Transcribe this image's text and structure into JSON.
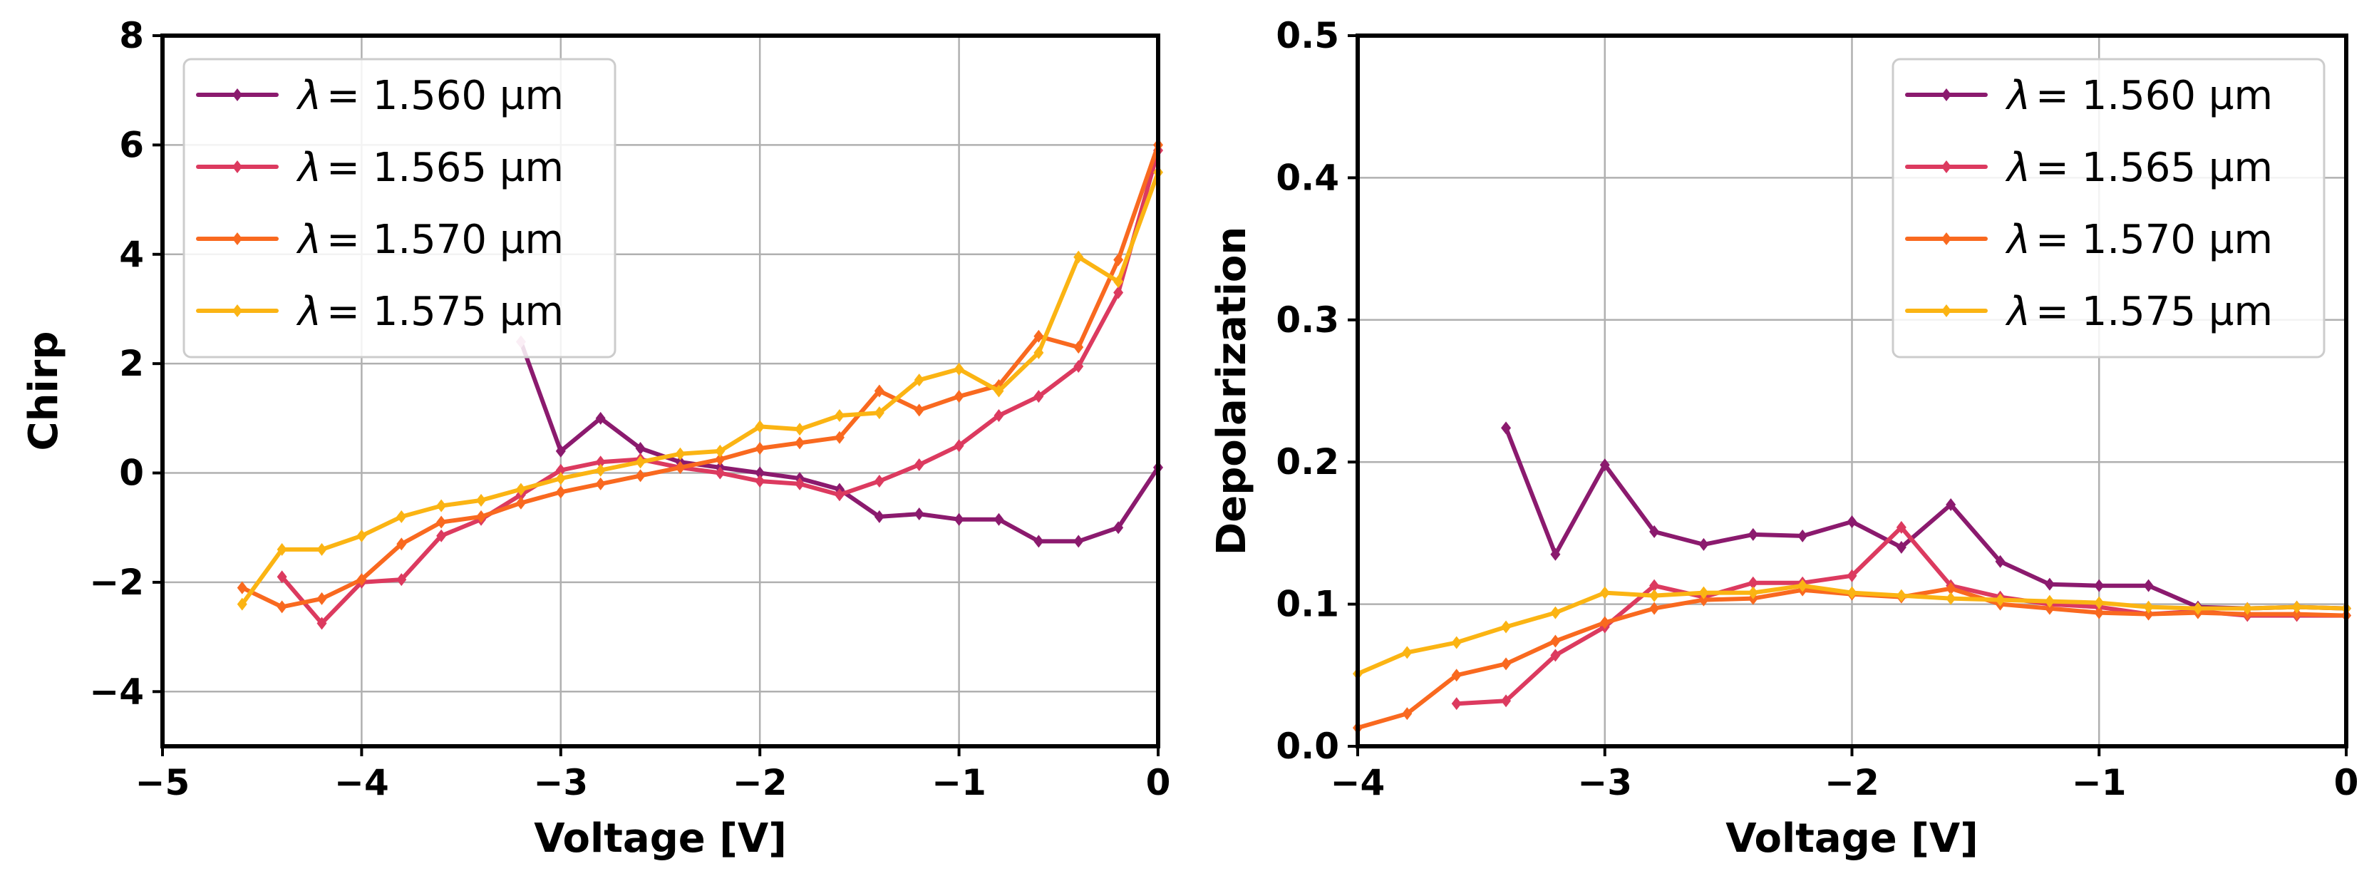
{
  "colors": {
    "series": [
      "#8b1a6e",
      "#dc3a5f",
      "#f9691f",
      "#fbb413"
    ],
    "grid": "#b0b0b0",
    "axis": "#000000",
    "legend_border": "#cccccc",
    "start_marker": "#d98fbd"
  },
  "chart_data": [
    {
      "type": "line",
      "xlabel": "Voltage [V]",
      "ylabel": "Chirp",
      "xlim": [
        -5,
        0
      ],
      "ylim": [
        -5,
        8
      ],
      "xticks": [
        -5,
        -4,
        -3,
        -2,
        -1,
        0
      ],
      "yticks": [
        -4,
        -2,
        0,
        2,
        4,
        6,
        8
      ],
      "xtick_labels": [
        "−5",
        "−4",
        "−3",
        "−2",
        "−1",
        "0"
      ],
      "ytick_labels": [
        "−4",
        "−2",
        "0",
        "2",
        "4",
        "6",
        "8"
      ],
      "grid": true,
      "legend_position": "upper-left",
      "series": [
        {
          "name": "λ = 1.560 µm",
          "legend_symbol": "λ",
          "legend_text": "= 1.560 µm",
          "x": [
            -3.2,
            -3.0,
            -2.8,
            -2.6,
            -2.4,
            -2.2,
            -2.0,
            -1.8,
            -1.6,
            -1.4,
            -1.2,
            -1.0,
            -0.8,
            -0.6,
            -0.4,
            -0.2,
            0.0
          ],
          "y": [
            2.4,
            0.4,
            1.0,
            0.45,
            0.2,
            0.1,
            0.0,
            -0.1,
            -0.3,
            -0.8,
            -0.75,
            -0.85,
            -0.85,
            -1.25,
            -1.25,
            -1.0,
            0.1
          ]
        },
        {
          "name": "λ = 1.565 µm",
          "legend_symbol": "λ",
          "legend_text": "= 1.565 µm",
          "x": [
            -4.4,
            -4.2,
            -4.0,
            -3.8,
            -3.6,
            -3.4,
            -3.2,
            -3.0,
            -2.8,
            -2.6,
            -2.4,
            -2.2,
            -2.0,
            -1.8,
            -1.6,
            -1.4,
            -1.2,
            -1.0,
            -0.8,
            -0.6,
            -0.4,
            -0.2,
            0.0
          ],
          "y": [
            -1.9,
            -2.75,
            -2.0,
            -1.95,
            -1.15,
            -0.85,
            -0.4,
            0.05,
            0.2,
            0.25,
            0.1,
            0.0,
            -0.15,
            -0.2,
            -0.4,
            -0.15,
            0.15,
            0.5,
            1.05,
            1.4,
            1.95,
            3.3,
            5.9
          ]
        },
        {
          "name": "λ = 1.570 µm",
          "legend_symbol": "λ",
          "legend_text": "= 1.570 µm",
          "x": [
            -4.6,
            -4.4,
            -4.2,
            -4.0,
            -3.8,
            -3.6,
            -3.4,
            -3.2,
            -3.0,
            -2.8,
            -2.6,
            -2.4,
            -2.2,
            -2.0,
            -1.8,
            -1.6,
            -1.4,
            -1.2,
            -1.0,
            -0.8,
            -0.6,
            -0.4,
            -0.2,
            0.0
          ],
          "y": [
            -2.1,
            -2.45,
            -2.3,
            -1.95,
            -1.3,
            -0.9,
            -0.8,
            -0.55,
            -0.35,
            -0.2,
            -0.05,
            0.1,
            0.25,
            0.45,
            0.55,
            0.65,
            1.5,
            1.15,
            1.4,
            1.6,
            2.5,
            2.3,
            3.9,
            6.0
          ]
        },
        {
          "name": "λ = 1.575 µm",
          "legend_symbol": "λ",
          "legend_text": "= 1.575 µm",
          "x": [
            -4.6,
            -4.4,
            -4.2,
            -4.0,
            -3.8,
            -3.6,
            -3.4,
            -3.2,
            -3.0,
            -2.8,
            -2.6,
            -2.4,
            -2.2,
            -2.0,
            -1.8,
            -1.6,
            -1.4,
            -1.2,
            -1.0,
            -0.8,
            -0.6,
            -0.4,
            -0.2,
            0.0
          ],
          "y": [
            -2.4,
            -1.4,
            -1.4,
            -1.15,
            -0.8,
            -0.6,
            -0.5,
            -0.3,
            -0.1,
            0.05,
            0.2,
            0.35,
            0.4,
            0.85,
            0.8,
            1.05,
            1.1,
            1.7,
            1.9,
            1.5,
            2.2,
            3.95,
            3.5,
            5.5
          ]
        }
      ]
    },
    {
      "type": "line",
      "xlabel": "Voltage [V]",
      "ylabel": "Depolarization",
      "xlim": [
        -4,
        0
      ],
      "ylim": [
        0,
        0.5
      ],
      "xticks": [
        -4,
        -3,
        -2,
        -1,
        0
      ],
      "yticks": [
        0.0,
        0.1,
        0.2,
        0.3,
        0.4,
        0.5
      ],
      "xtick_labels": [
        "−4",
        "−3",
        "−2",
        "−1",
        "0"
      ],
      "ytick_labels": [
        "0.0",
        "0.1",
        "0.2",
        "0.3",
        "0.4",
        "0.5"
      ],
      "grid": true,
      "legend_position": "upper-right",
      "series": [
        {
          "name": "λ = 1.560 µm",
          "legend_symbol": "λ",
          "legend_text": "= 1.560 µm",
          "x": [
            -3.4,
            -3.2,
            -3.0,
            -2.8,
            -2.6,
            -2.4,
            -2.2,
            -2.0,
            -1.8,
            -1.6,
            -1.4,
            -1.2,
            -1.0,
            -0.8,
            -0.6,
            -0.4,
            -0.2,
            0.0
          ],
          "y": [
            0.224,
            0.135,
            0.198,
            0.151,
            0.142,
            0.149,
            0.148,
            0.158,
            0.14,
            0.17,
            0.13,
            0.114,
            0.113,
            0.113,
            0.098,
            0.097,
            0.098,
            0.097
          ]
        },
        {
          "name": "λ = 1.565 µm",
          "legend_symbol": "λ",
          "legend_text": "= 1.565 µm",
          "x": [
            -3.6,
            -3.4,
            -3.2,
            -3.0,
            -2.8,
            -2.6,
            -2.4,
            -2.2,
            -2.0,
            -1.8,
            -1.6,
            -1.4,
            -1.2,
            -1.0,
            -0.8,
            -0.6,
            -0.4,
            -0.2,
            0.0
          ],
          "y": [
            0.03,
            0.032,
            0.064,
            0.084,
            0.113,
            0.105,
            0.115,
            0.115,
            0.12,
            0.154,
            0.113,
            0.105,
            0.1,
            0.098,
            0.093,
            0.095,
            0.092,
            0.092,
            0.092
          ]
        },
        {
          "name": "λ = 1.570 µm",
          "legend_symbol": "λ",
          "legend_text": "= 1.570 µm",
          "x": [
            -4.0,
            -3.8,
            -3.6,
            -3.4,
            -3.2,
            -3.0,
            -2.8,
            -2.6,
            -2.4,
            -2.2,
            -2.0,
            -1.8,
            -1.6,
            -1.4,
            -1.2,
            -1.0,
            -0.8,
            -0.6,
            -0.4,
            -0.2,
            0.0
          ],
          "y": [
            0.013,
            0.023,
            0.05,
            0.058,
            0.074,
            0.087,
            0.097,
            0.103,
            0.104,
            0.11,
            0.107,
            0.105,
            0.111,
            0.1,
            0.097,
            0.094,
            0.093,
            0.094,
            0.093,
            0.093,
            0.092
          ]
        },
        {
          "name": "λ = 1.575 µm",
          "legend_symbol": "λ",
          "legend_text": "= 1.575 µm",
          "x": [
            -4.0,
            -3.8,
            -3.6,
            -3.4,
            -3.2,
            -3.0,
            -2.8,
            -2.6,
            -2.4,
            -2.2,
            -2.0,
            -1.8,
            -1.6,
            -1.4,
            -1.2,
            -1.0,
            -0.8,
            -0.6,
            -0.4,
            -0.2,
            0.0
          ],
          "y": [
            0.051,
            0.066,
            0.073,
            0.084,
            0.094,
            0.108,
            0.106,
            0.108,
            0.108,
            0.113,
            0.108,
            0.106,
            0.104,
            0.103,
            0.102,
            0.101,
            0.098,
            0.097,
            0.097,
            0.098,
            0.097
          ]
        }
      ]
    }
  ]
}
